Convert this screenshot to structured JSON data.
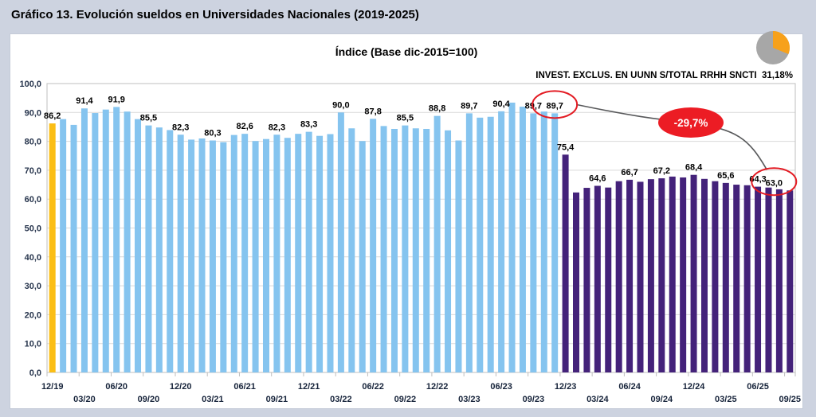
{
  "page": {
    "title": "Gráfico 13. Evolución sueldos en Universidades Nacionales (2019-2025)"
  },
  "panel": {
    "subtitle": "Índice (Base dic-2015=100)",
    "legend_note": "INVEST. EXCLUS. EN UUNN S/TOTAL RRHH SNCTI  31,18%"
  },
  "callout": {
    "label": "-29,7%"
  },
  "pie_icon": {
    "percent": 31.18,
    "slice_color": "#f7a11b",
    "rest_color": "#a7a7a7"
  },
  "colors": {
    "bar_base": "#fbbe15",
    "bar_blue": "#85c4ef",
    "bar_purple": "#44227a",
    "callout_red": "#ec1c24",
    "circle_red": "#e31b23",
    "connector": "#58595b",
    "grid": "#d9d9d9",
    "axis": "#bfbfbf",
    "ytick_text": "#26344c",
    "xtick_text": "#16233a",
    "datalabel_text": "#000000"
  },
  "chart_data": {
    "type": "bar",
    "title": "Índice (Base dic-2015=100)",
    "xlabel": "",
    "ylabel": "",
    "ylim": [
      0,
      100
    ],
    "ytick_step": 10,
    "grid": true,
    "months": [
      "12/19",
      "01/20",
      "02/20",
      "03/20",
      "04/20",
      "05/20",
      "06/20",
      "07/20",
      "08/20",
      "09/20",
      "10/20",
      "11/20",
      "12/20",
      "01/21",
      "02/21",
      "03/21",
      "04/21",
      "05/21",
      "06/21",
      "07/21",
      "08/21",
      "09/21",
      "10/21",
      "11/21",
      "12/21",
      "01/22",
      "02/22",
      "03/22",
      "04/22",
      "05/22",
      "06/22",
      "07/22",
      "08/22",
      "09/22",
      "10/22",
      "11/22",
      "12/22",
      "01/23",
      "02/23",
      "03/23",
      "04/23",
      "05/23",
      "06/23",
      "07/23",
      "08/23",
      "09/23",
      "10/23",
      "11/23",
      "12/23",
      "01/24",
      "02/24",
      "03/24",
      "04/24",
      "05/24",
      "06/24",
      "07/24",
      "08/24",
      "09/24",
      "10/24",
      "11/24",
      "12/24",
      "01/25",
      "02/25",
      "03/25",
      "04/25",
      "05/25",
      "06/25",
      "07/25",
      "08/25",
      "09/25"
    ],
    "values": [
      86.2,
      87.7,
      85.7,
      91.4,
      89.8,
      91.0,
      91.9,
      90.3,
      87.7,
      85.5,
      84.8,
      83.9,
      82.3,
      80.6,
      81.0,
      80.3,
      79.7,
      82.2,
      82.6,
      80.1,
      80.8,
      82.3,
      81.2,
      82.6,
      83.3,
      81.9,
      82.5,
      90.0,
      84.5,
      80.1,
      87.8,
      85.3,
      84.3,
      85.5,
      84.5,
      84.3,
      88.8,
      83.8,
      80.3,
      89.7,
      88.2,
      88.5,
      90.4,
      93.4,
      92.0,
      89.7,
      90.3,
      89.7,
      75.4,
      62.3,
      63.9,
      64.6,
      64.0,
      66.2,
      66.7,
      66.0,
      66.9,
      67.2,
      67.8,
      67.5,
      68.4,
      67.0,
      66.2,
      65.6,
      65.0,
      64.8,
      64.3,
      64.0,
      63.4,
      63.0
    ],
    "purple_start_index": 48,
    "base_bar_index": 0,
    "label_every_n": 3,
    "extra_labeled_indices": [
      47
    ],
    "circled": [
      {
        "index": 47,
        "dx": 0
      },
      {
        "index": 69,
        "dx": -20
      }
    ],
    "x_tick_labels": [
      "12/19",
      "03/20",
      "06/20",
      "09/20",
      "12/20",
      "03/21",
      "06/21",
      "09/21",
      "12/21",
      "03/22",
      "06/22",
      "09/22",
      "12/22",
      "03/23",
      "06/23",
      "09/23",
      "12/23",
      "03/24",
      "06/24",
      "09/24",
      "12/24",
      "03/25",
      "06/25",
      "09/25"
    ],
    "annotation": {
      "text": "-29,7%",
      "from_index": 47,
      "to_index": 69
    },
    "legend_position": "none"
  }
}
